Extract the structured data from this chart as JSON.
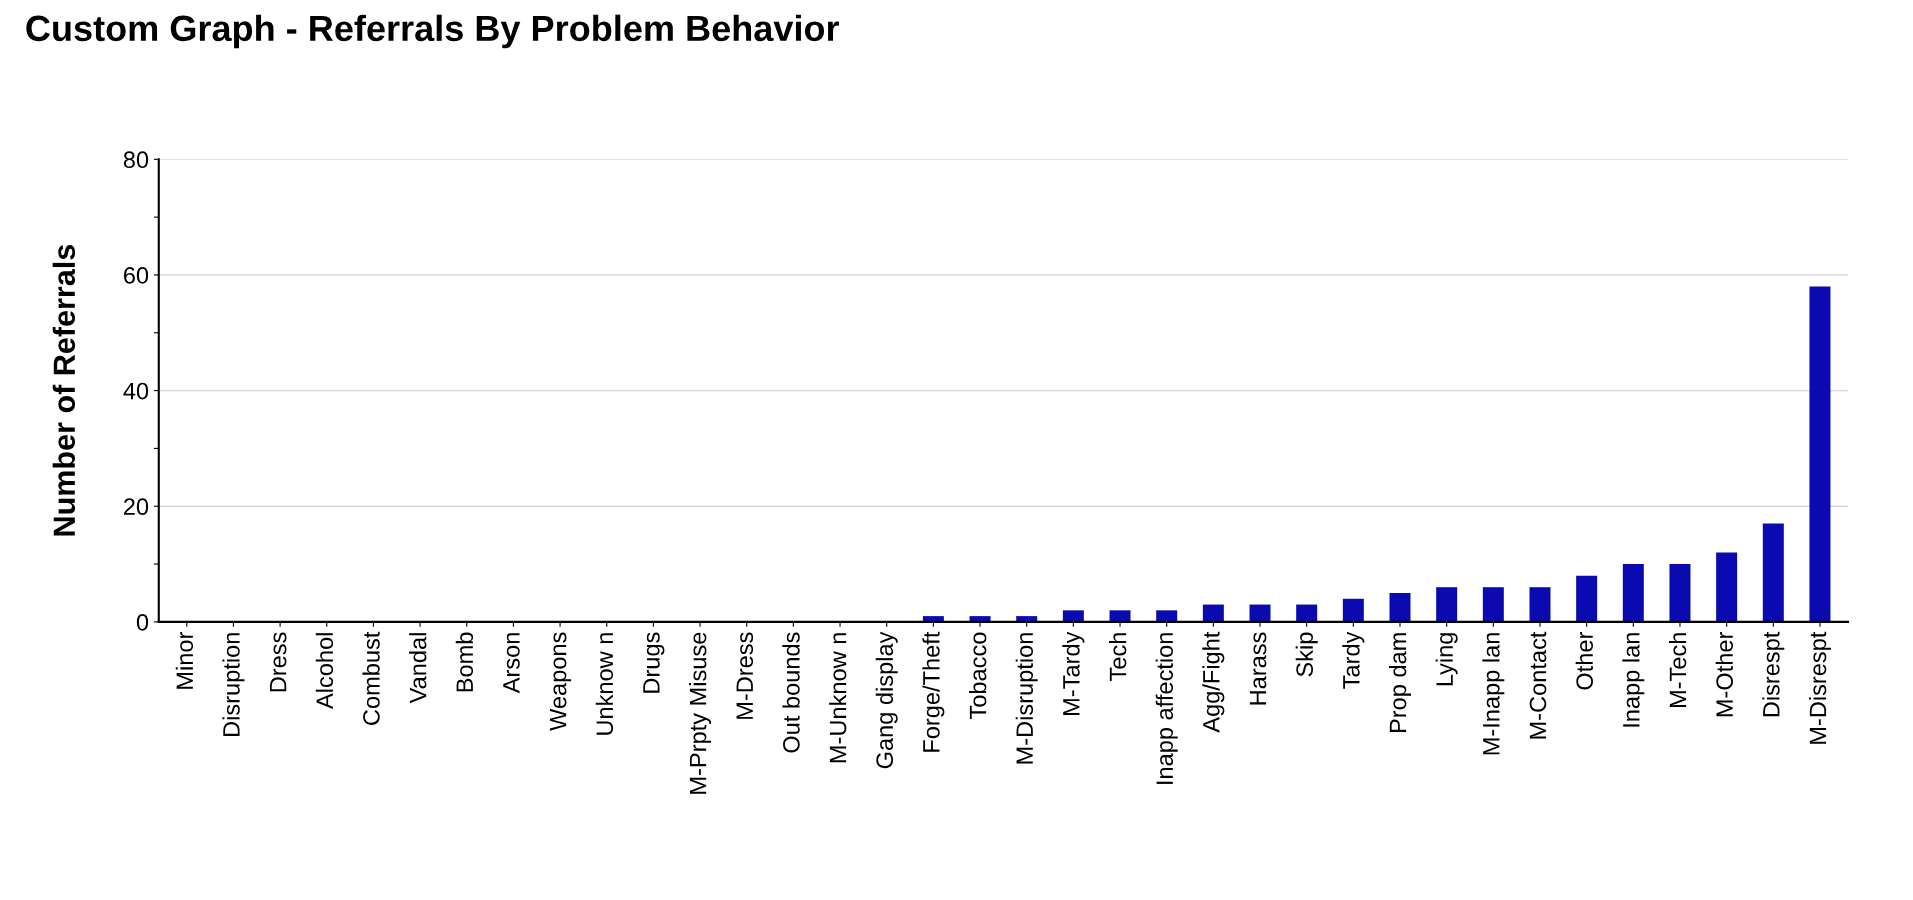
{
  "chart_data": {
    "type": "bar",
    "title": "Custom Graph - Referrals By Problem Behavior",
    "ylabel": "Number of Referrals",
    "categories": [
      "Minor",
      "Disruption",
      "Dress",
      "Alcohol",
      "Combust",
      "Vandal",
      "Bomb",
      "Arson",
      "Weapons",
      "Unknow n",
      "Drugs",
      "M-Prpty Misuse",
      "M-Dress",
      "Out bounds",
      "M-Unknow n",
      "Gang display",
      "Forge/Theft",
      "Tobacco",
      "M-Disruption",
      "M-Tardy",
      "Tech",
      "Inapp affection",
      "Agg/Fight",
      "Harass",
      "Skip",
      "Tardy",
      "Prop dam",
      "Lying",
      "M-Inapp lan",
      "M-Contact",
      "Other",
      "Inapp lan",
      "M-Tech",
      "M-Other",
      "Disrespt",
      "M-Disrespt"
    ],
    "values": [
      0,
      0,
      0,
      0,
      0,
      0,
      0,
      0,
      0,
      0,
      0,
      0,
      0,
      0,
      0,
      0,
      1,
      1,
      1,
      2,
      2,
      2,
      3,
      3,
      3,
      4,
      5,
      6,
      6,
      6,
      8,
      10,
      10,
      12,
      17,
      58
    ],
    "color": "#0a0ab0",
    "ylim": [
      0,
      80
    ],
    "yticks": [
      0,
      {
        "value": 10,
        "label": null
      },
      20,
      {
        "value": 30,
        "label": null
      },
      40,
      {
        "value": 50,
        "label": null
      },
      60,
      {
        "value": 70,
        "label": null
      },
      80
    ],
    "grid": "y"
  }
}
